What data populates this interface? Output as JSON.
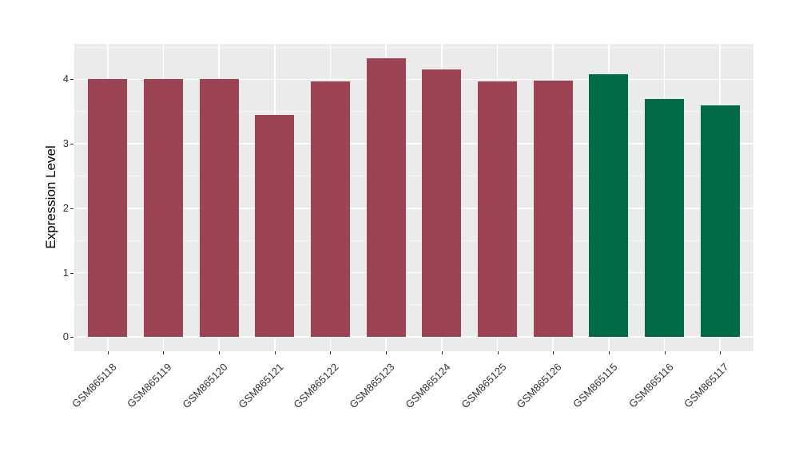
{
  "chart_data": {
    "type": "bar",
    "title": "",
    "xlabel": "",
    "ylabel": "Expression Level",
    "categories": [
      "GSM865118",
      "GSM865119",
      "GSM865120",
      "GSM865121",
      "GSM865122",
      "GSM865123",
      "GSM865124",
      "GSM865125",
      "GSM865126",
      "GSM865115",
      "GSM865116",
      "GSM865117"
    ],
    "values": [
      4.0,
      4.0,
      4.0,
      3.45,
      3.97,
      4.33,
      4.15,
      3.97,
      3.98,
      4.08,
      3.7,
      3.59
    ],
    "bar_colors": [
      "#9C4453",
      "#9C4453",
      "#9C4453",
      "#9C4453",
      "#9C4453",
      "#9C4453",
      "#9C4453",
      "#9C4453",
      "#9C4453",
      "#016B45",
      "#016B45",
      "#016B45"
    ],
    "color_legend": {
      "maroon_group": "#9C4453",
      "green_group": "#016B45"
    },
    "yticks": [
      0,
      1,
      2,
      3,
      4
    ],
    "ylim": [
      -0.22,
      4.55
    ],
    "bar_width_fraction": 0.7,
    "x_axis_padding_units": 0.6,
    "legend": "none",
    "grid": "major and minor horizontal, major vertical at category centers",
    "panel_bg": "#EBEBEB",
    "grid_color": "#FFFFFF",
    "axis_text_color": "#333333",
    "x_label_rotation_deg": 45
  }
}
